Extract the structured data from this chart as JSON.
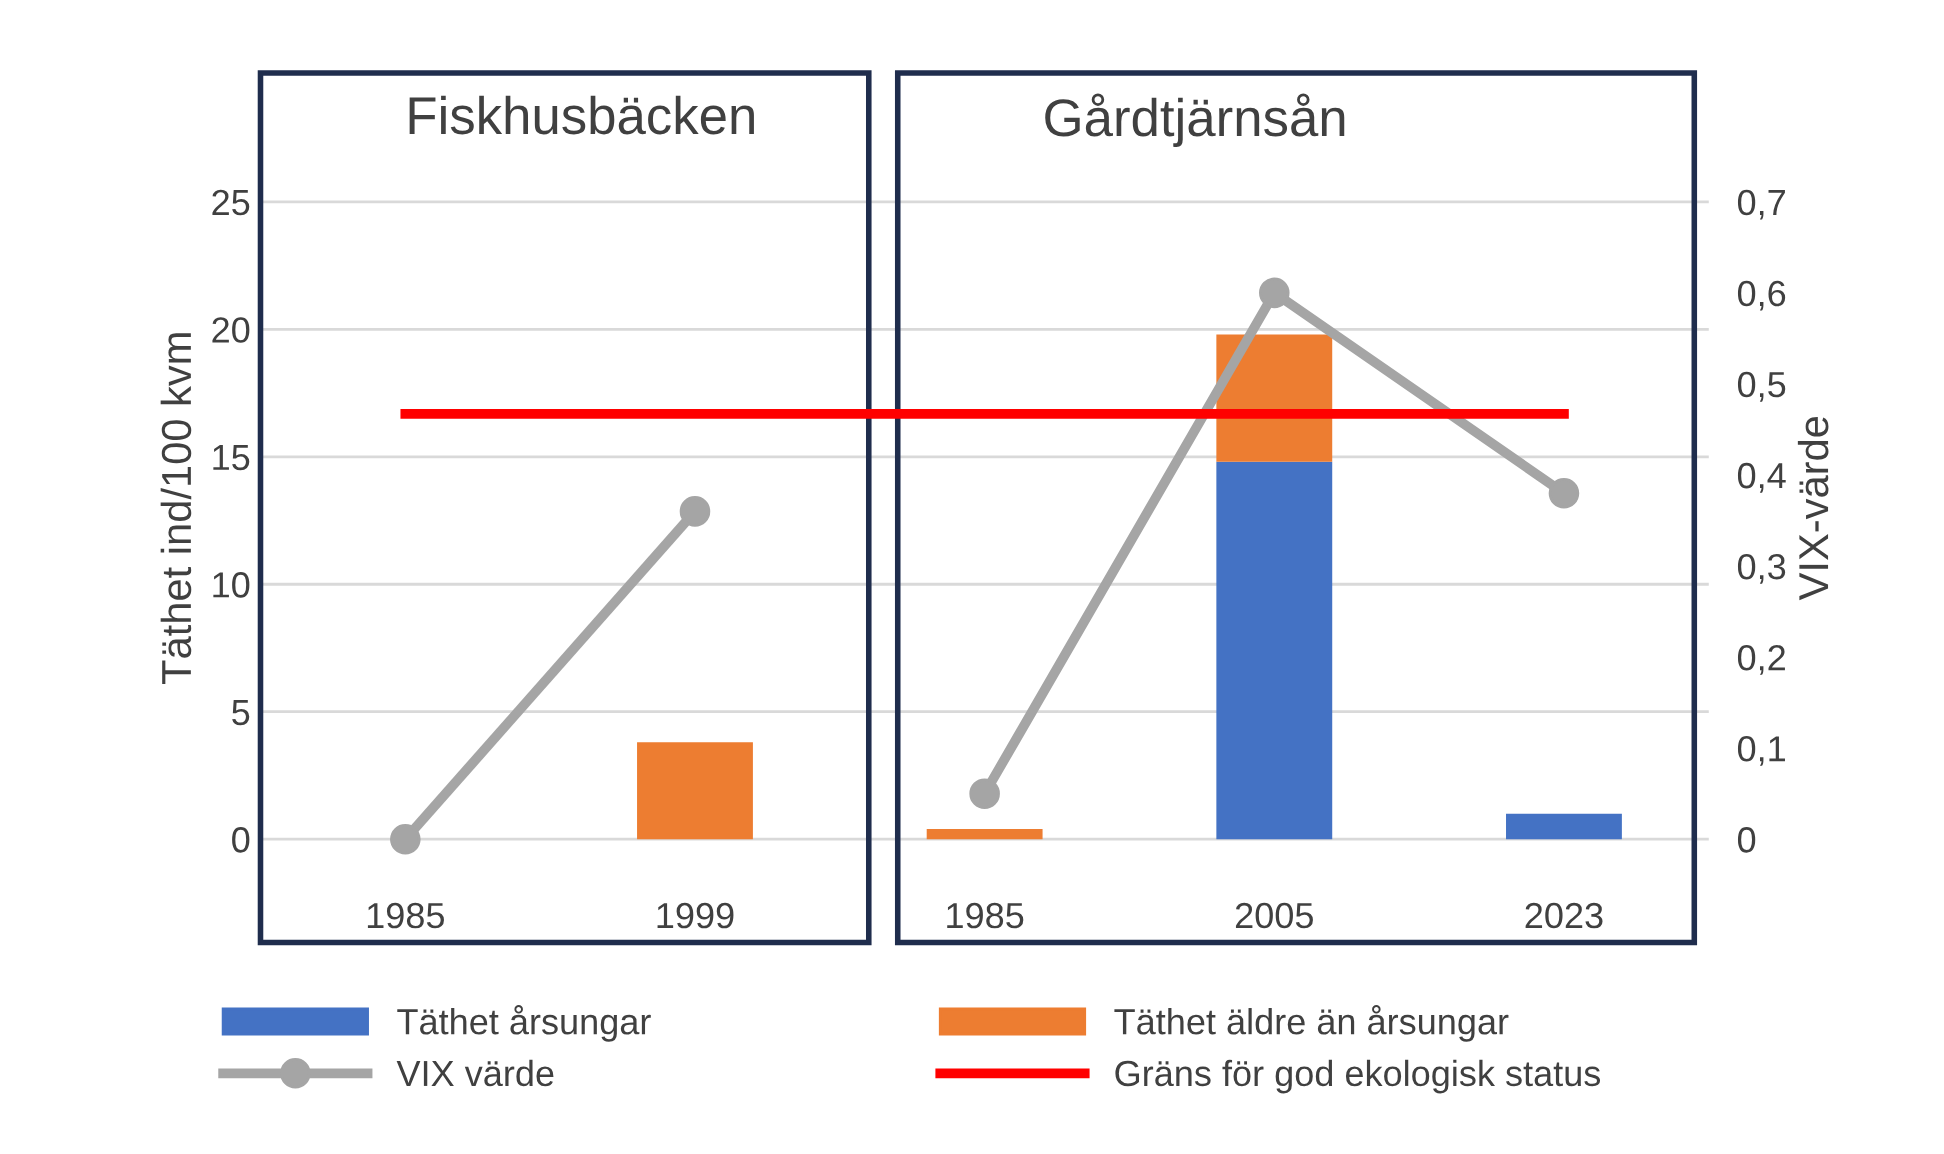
{
  "chart_data": {
    "type": "bar",
    "stacked": true,
    "categories": [
      "1985",
      "1999",
      "1985",
      "2005",
      "2023"
    ],
    "series": [
      {
        "name": "Täthet årsungar",
        "color": "#4472c4",
        "values": [
          0,
          0,
          0,
          14.8,
          1.0
        ]
      },
      {
        "name": "Täthet äldre än årsungar",
        "color": "#ed7d31",
        "values": [
          0,
          3.8,
          0.4,
          5.0,
          0
        ]
      },
      {
        "name": "VIX värde",
        "type": "line",
        "axis": "y2",
        "color": "#a5a5a5",
        "marker": "circle",
        "values": [
          0,
          0.36,
          null,
          null,
          null
        ]
      },
      {
        "type": "line",
        "axis": "y2",
        "color": "#a5a5a5",
        "marker": "circle",
        "values": [
          null,
          null,
          0.05,
          0.6,
          0.38
        ]
      }
    ],
    "ref_lines": [
      {
        "axis": "y2",
        "value": 0.467,
        "label": "Gräns för god ekologisk status",
        "color": "#ff0000"
      }
    ],
    "annotations": [
      "Fiskhusbäcken",
      "Gårdtjärnsån"
    ],
    "ylabel": "Täthet ind/100 kvm",
    "y2label": "VIX-värde",
    "ylim": [
      -4.2,
      30.2
    ],
    "yticks": [
      0,
      5,
      10,
      15,
      20,
      25
    ],
    "y2lim": [
      -0.1176,
      0.8456
    ],
    "y2ticks": [
      0,
      {
        "value": 0.1,
        "label": "0,1"
      },
      {
        "value": 0.2,
        "label": "0,2"
      },
      {
        "value": 0.3,
        "label": "0,3"
      },
      {
        "value": 0.4,
        "label": "0,4"
      },
      {
        "value": 0.5,
        "label": "0,5"
      },
      {
        "value": 0.6,
        "label": "0,6"
      },
      {
        "value": 0.7,
        "label": "0,7"
      }
    ],
    "grid": "y",
    "legend": "bottom"
  }
}
